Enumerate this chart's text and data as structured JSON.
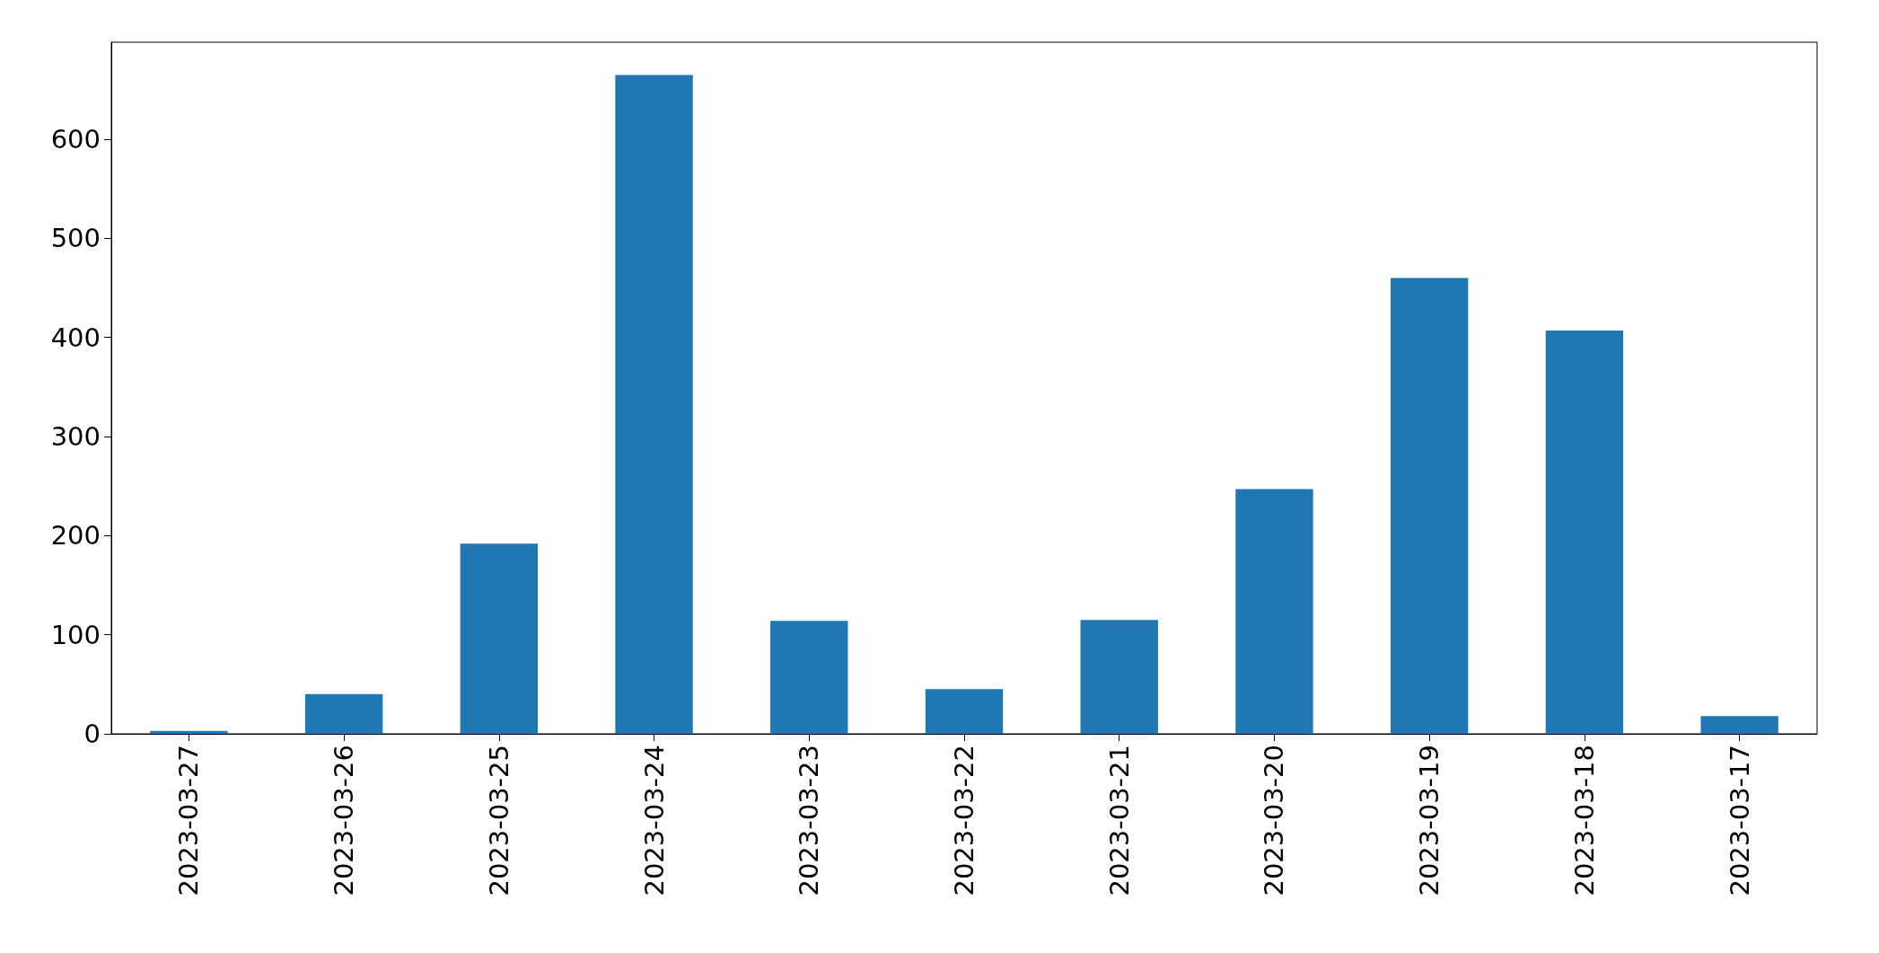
{
  "chart_data": {
    "type": "bar",
    "categories": [
      "2023-03-27",
      "2023-03-26",
      "2023-03-25",
      "2023-03-24",
      "2023-03-23",
      "2023-03-22",
      "2023-03-21",
      "2023-03-20",
      "2023-03-19",
      "2023-03-18",
      "2023-03-17"
    ],
    "values": [
      3,
      40,
      192,
      665,
      114,
      45,
      115,
      247,
      460,
      407,
      18
    ],
    "color": "#1f77b4",
    "ylim": [
      0,
      698
    ],
    "yticks": [
      0,
      100,
      200,
      300,
      400,
      500,
      600
    ],
    "grid": false
  }
}
